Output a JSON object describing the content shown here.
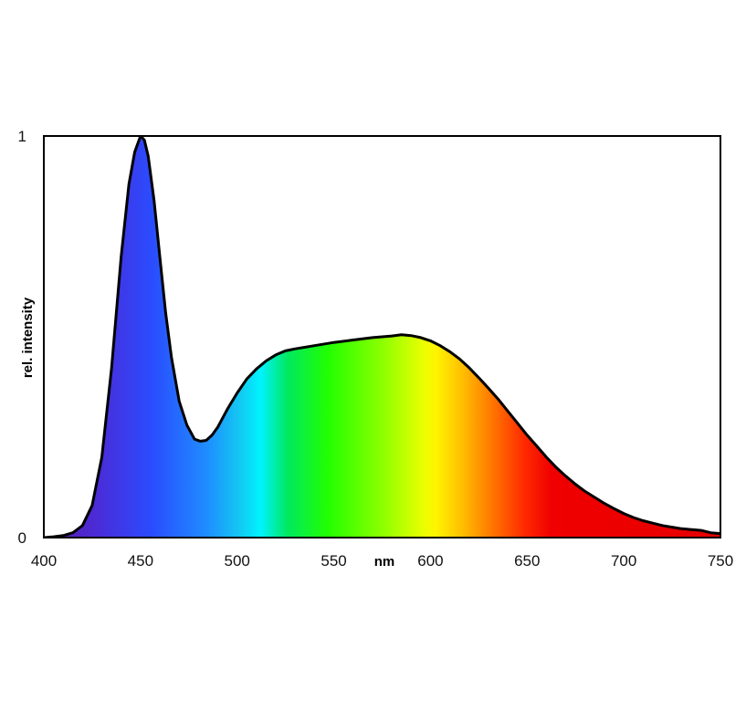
{
  "chart_data": {
    "type": "area",
    "xlabel": "nm",
    "ylabel": "rel. intensity",
    "xlim": [
      400,
      750
    ],
    "ylim": [
      0,
      1
    ],
    "x_ticks": [
      "400",
      "450",
      "500",
      "550",
      "600",
      "650",
      "700",
      "750"
    ],
    "y_ticks": [
      "0",
      "1"
    ],
    "grid": false,
    "fill": "visible-spectrum gradient",
    "series": [
      {
        "x": [
          400,
          405,
          410,
          415,
          420,
          425,
          430,
          435,
          440,
          444,
          447,
          450,
          452,
          454,
          457,
          460,
          463,
          466,
          470,
          474,
          478,
          481,
          484,
          487,
          490,
          495,
          500,
          505,
          510,
          515,
          520,
          525,
          530,
          540,
          550,
          560,
          570,
          580,
          585,
          590,
          595,
          600,
          605,
          610,
          615,
          620,
          625,
          630,
          635,
          640,
          645,
          650,
          655,
          660,
          665,
          670,
          675,
          680,
          685,
          690,
          695,
          700,
          705,
          710,
          715,
          720,
          725,
          730,
          735,
          740,
          745,
          750
        ],
        "y": [
          0.0,
          0.002,
          0.005,
          0.012,
          0.03,
          0.08,
          0.2,
          0.42,
          0.7,
          0.88,
          0.96,
          1.0,
          0.99,
          0.95,
          0.84,
          0.7,
          0.56,
          0.45,
          0.34,
          0.28,
          0.245,
          0.24,
          0.242,
          0.255,
          0.275,
          0.32,
          0.36,
          0.395,
          0.42,
          0.44,
          0.455,
          0.465,
          0.47,
          0.478,
          0.486,
          0.492,
          0.498,
          0.502,
          0.505,
          0.503,
          0.498,
          0.49,
          0.478,
          0.463,
          0.445,
          0.423,
          0.398,
          0.372,
          0.345,
          0.315,
          0.285,
          0.255,
          0.228,
          0.2,
          0.175,
          0.153,
          0.133,
          0.115,
          0.1,
          0.085,
          0.072,
          0.06,
          0.05,
          0.042,
          0.036,
          0.03,
          0.026,
          0.022,
          0.02,
          0.018,
          0.012,
          0.01
        ]
      }
    ]
  }
}
